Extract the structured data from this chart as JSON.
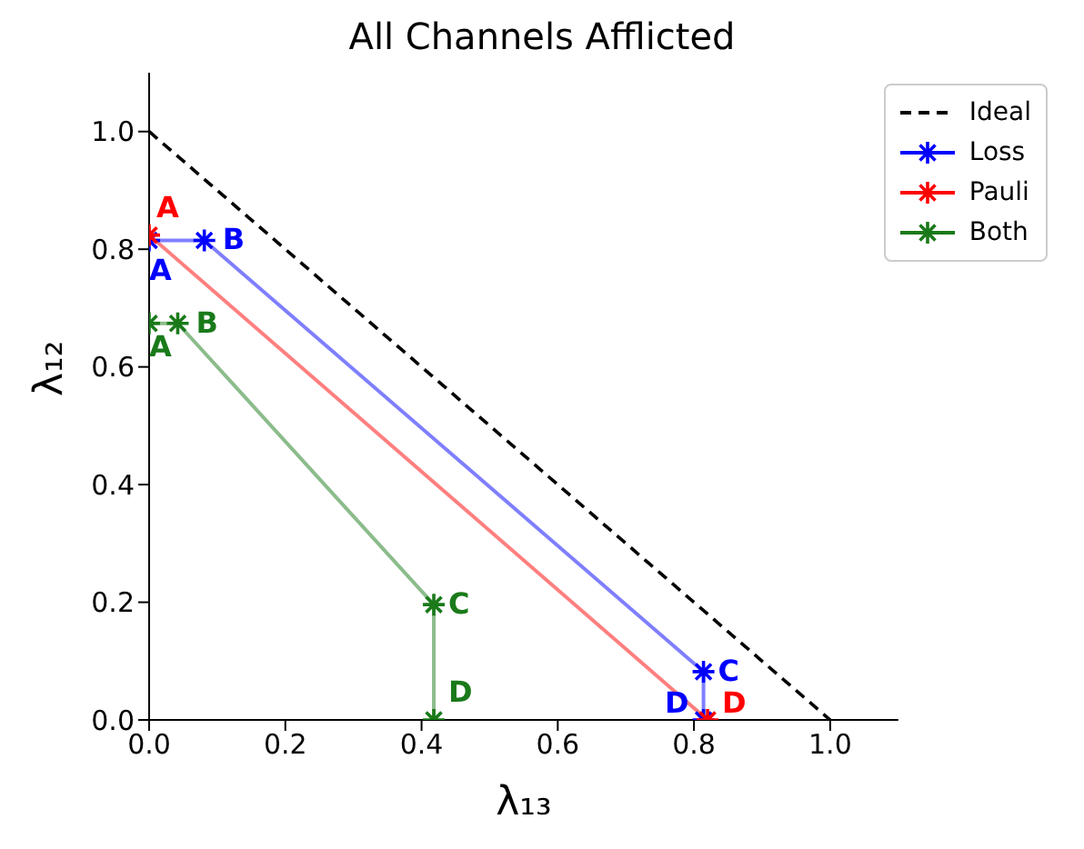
{
  "chart_data": {
    "type": "line",
    "title": "All Channels Afflicted",
    "xlabel": "λ₁₃",
    "ylabel": "λ₁₂",
    "xlim": [
      0,
      1.1
    ],
    "ylim": [
      0,
      1.1
    ],
    "xticks": [
      {
        "value": 0,
        "label": "0.0"
      },
      0.2,
      0.4,
      0.6,
      0.8,
      {
        "value": 1,
        "label": "1.0"
      }
    ],
    "yticks": [
      {
        "value": 0,
        "label": "0.0"
      },
      0.2,
      0.4,
      0.6,
      0.8,
      {
        "value": 1,
        "label": "1.0"
      }
    ],
    "legend": "top right",
    "marker": "cross",
    "series": [
      {
        "name": "Ideal",
        "color": "#000000",
        "x": [
          0,
          1
        ],
        "values": [
          1,
          0
        ],
        "line_style": "dashed",
        "marker": "none"
      },
      {
        "name": "Loss",
        "color": "#0000ff",
        "x": [
          0,
          0.081,
          0.814,
          0.814
        ],
        "values": [
          0.815,
          0.815,
          0.082,
          0
        ]
      },
      {
        "name": "Pauli",
        "color": "#ff0000",
        "x": [
          0,
          0.82
        ],
        "values": [
          0.824,
          0
        ]
      },
      {
        "name": "Both",
        "color": "#1a7a1a",
        "x": [
          0,
          0.042,
          0.418,
          0.418
        ],
        "values": [
          0.674,
          0.674,
          0.196,
          0
        ]
      }
    ],
    "annotations": [
      {
        "text": "A",
        "x": 0,
        "y": 0.824
      },
      {
        "text": "A",
        "x": 0,
        "y": 0.815
      },
      {
        "text": "B",
        "x": 0.081,
        "y": 0.815
      },
      {
        "text": "A",
        "x": 0,
        "y": 0.674
      },
      {
        "text": "B",
        "x": 0.042,
        "y": 0.674
      },
      {
        "text": "C",
        "x": 0.418,
        "y": 0.196
      },
      {
        "text": "D",
        "x": 0.418,
        "y": 0
      },
      {
        "text": "C",
        "x": 0.814,
        "y": 0.082
      },
      {
        "text": "D",
        "x": 0.814,
        "y": 0
      },
      {
        "text": "D",
        "x": 0.82,
        "y": 0
      }
    ]
  }
}
